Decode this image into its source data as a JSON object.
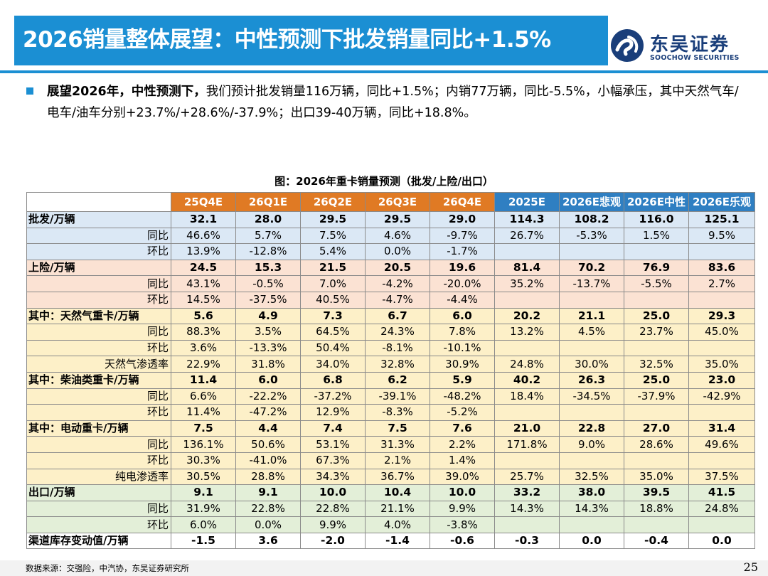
{
  "title": "2026销量整体展望：中性预测下批发销量同比+1.5%",
  "logo": {
    "name_cn": "东吴证券",
    "name_en": "SOOCHOW SECURITIES",
    "icon": "soochow-logo-icon",
    "color": "#1a3e7a"
  },
  "accent_color": "#1b8fd3",
  "bullet": {
    "lead": "展望2026年，中性预测下，",
    "text": "我们预计批发销量116万辆，同比+1.5%；内销77万辆，同比-5.5%，小幅承压，其中天然气车/电车/油车分别+23.7%/+28.6%/-37.9%；出口39-40万辆，同比+18.8%。"
  },
  "table": {
    "caption": "图：2026年重卡销量预测（批发/上险/出口）",
    "columns": [
      {
        "label": "25Q4E",
        "color": "#e07a24"
      },
      {
        "label": "26Q1E",
        "color": "#e07a24"
      },
      {
        "label": "26Q2E",
        "color": "#e07a24"
      },
      {
        "label": "26Q3E",
        "color": "#e07a24"
      },
      {
        "label": "26Q4E",
        "color": "#e07a24"
      },
      {
        "label": "2025E",
        "color": "#2f7fc2"
      },
      {
        "label": "2026E悲观",
        "color": "#2f7fc2"
      },
      {
        "label": "2026E中性",
        "color": "#2f7fc2"
      },
      {
        "label": "2026E乐观",
        "color": "#2f7fc2"
      }
    ],
    "groups": [
      {
        "color": "#dbe8f5",
        "rows": [
          {
            "label": "批发/万辆",
            "main": true,
            "values": [
              "32.1",
              "28.0",
              "29.5",
              "29.5",
              "29.0",
              "114.3",
              "108.2",
              "116.0",
              "125.1"
            ]
          },
          {
            "label": "同比",
            "main": false,
            "values": [
              "46.6%",
              "5.7%",
              "7.5%",
              "4.6%",
              "-9.7%",
              "26.7%",
              "-5.3%",
              "1.5%",
              "9.5%"
            ]
          },
          {
            "label": "环比",
            "main": false,
            "values": [
              "13.9%",
              "-12.8%",
              "5.4%",
              "0.0%",
              "-1.7%",
              "",
              "",
              "",
              ""
            ]
          }
        ]
      },
      {
        "color": "#fbe2d3",
        "rows": [
          {
            "label": "上险/万辆",
            "main": true,
            "values": [
              "24.5",
              "15.3",
              "21.5",
              "20.5",
              "19.6",
              "81.4",
              "70.2",
              "76.9",
              "83.6"
            ]
          },
          {
            "label": "同比",
            "main": false,
            "values": [
              "43.1%",
              "-0.5%",
              "7.0%",
              "-4.2%",
              "-20.0%",
              "35.2%",
              "-13.7%",
              "-5.5%",
              "2.7%"
            ]
          },
          {
            "label": "环比",
            "main": false,
            "values": [
              "14.5%",
              "-37.5%",
              "40.5%",
              "-4.7%",
              "-4.4%",
              "",
              "",
              "",
              ""
            ]
          }
        ]
      },
      {
        "color": "#fdf0c8",
        "rows": [
          {
            "label": "其中：天然气重卡/万辆",
            "main": true,
            "values": [
              "5.6",
              "4.9",
              "7.3",
              "6.7",
              "6.0",
              "20.2",
              "21.1",
              "25.0",
              "29.3"
            ]
          },
          {
            "label": "同比",
            "main": false,
            "values": [
              "88.3%",
              "3.5%",
              "64.5%",
              "24.3%",
              "7.8%",
              "13.2%",
              "4.5%",
              "23.7%",
              "45.0%"
            ]
          },
          {
            "label": "环比",
            "main": false,
            "values": [
              "3.6%",
              "-13.3%",
              "50.4%",
              "-8.1%",
              "-10.1%",
              "",
              "",
              "",
              ""
            ]
          },
          {
            "label": "天然气渗透率",
            "main": false,
            "values": [
              "22.9%",
              "31.8%",
              "34.0%",
              "32.8%",
              "30.9%",
              "24.8%",
              "30.0%",
              "32.5%",
              "35.0%"
            ]
          },
          {
            "label": "其中：柴油类重卡/万辆",
            "main": true,
            "values": [
              "11.4",
              "6.0",
              "6.8",
              "6.2",
              "5.9",
              "40.2",
              "26.3",
              "25.0",
              "23.0"
            ]
          },
          {
            "label": "同比",
            "main": false,
            "values": [
              "6.6%",
              "-22.2%",
              "-37.2%",
              "-39.1%",
              "-48.2%",
              "18.4%",
              "-34.5%",
              "-37.9%",
              "-42.9%"
            ]
          },
          {
            "label": "环比",
            "main": false,
            "values": [
              "11.4%",
              "-47.2%",
              "12.9%",
              "-8.3%",
              "-5.2%",
              "",
              "",
              "",
              ""
            ]
          },
          {
            "label": "其中：电动重卡/万辆",
            "main": true,
            "values": [
              "7.5",
              "4.4",
              "7.4",
              "7.5",
              "7.6",
              "21.0",
              "22.8",
              "27.0",
              "31.4"
            ]
          },
          {
            "label": "同比",
            "main": false,
            "values": [
              "136.1%",
              "50.6%",
              "53.1%",
              "31.3%",
              "2.2%",
              "171.8%",
              "9.0%",
              "28.6%",
              "49.6%"
            ]
          },
          {
            "label": "环比",
            "main": false,
            "values": [
              "30.3%",
              "-41.0%",
              "67.3%",
              "2.1%",
              "1.4%",
              "",
              "",
              "",
              ""
            ]
          },
          {
            "label": "纯电渗透率",
            "main": false,
            "values": [
              "30.5%",
              "28.8%",
              "34.3%",
              "36.7%",
              "39.0%",
              "25.7%",
              "32.5%",
              "35.0%",
              "37.5%"
            ]
          }
        ]
      },
      {
        "color": "#e3efd8",
        "rows": [
          {
            "label": "出口/万辆",
            "main": true,
            "values": [
              "9.1",
              "9.1",
              "10.0",
              "10.4",
              "10.0",
              "33.2",
              "38.0",
              "39.5",
              "41.5"
            ]
          },
          {
            "label": "同比",
            "main": false,
            "values": [
              "31.9%",
              "22.8%",
              "22.8%",
              "21.1%",
              "9.9%",
              "14.3%",
              "14.3%",
              "18.8%",
              "24.8%"
            ]
          },
          {
            "label": "环比",
            "main": false,
            "values": [
              "6.0%",
              "0.0%",
              "9.9%",
              "4.0%",
              "-3.8%",
              "",
              "",
              "",
              ""
            ]
          }
        ]
      },
      {
        "color": "#ffffff",
        "rows": [
          {
            "label": "渠道库存变动值/万辆",
            "main": true,
            "values": [
              "-1.5",
              "3.6",
              "-2.0",
              "-1.4",
              "-0.6",
              "-0.3",
              "0.0",
              "-0.4",
              "0.0"
            ]
          }
        ]
      }
    ]
  },
  "footer": {
    "source": "数据来源：交强险，中汽协，东吴证券研究所",
    "page": "25"
  }
}
